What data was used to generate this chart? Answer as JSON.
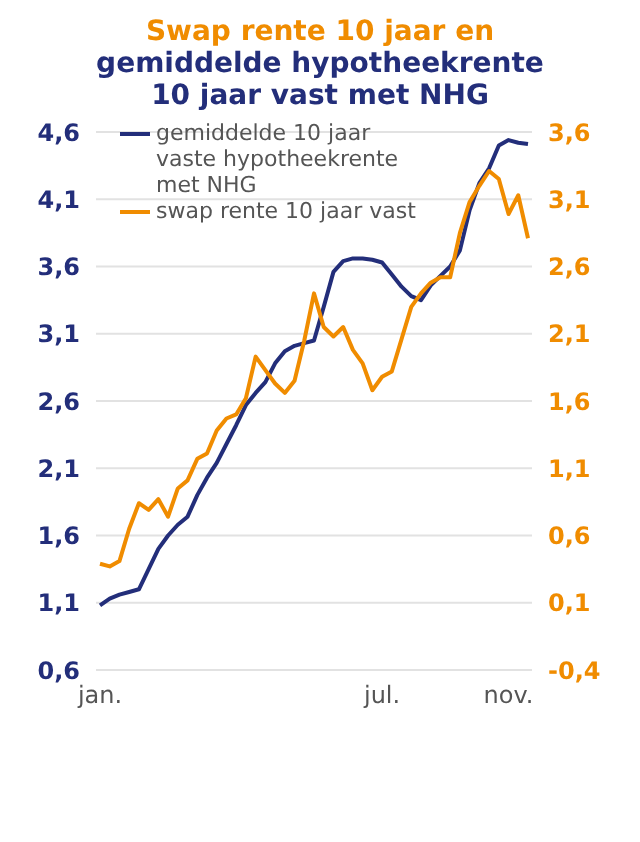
{
  "chart_data": {
    "type": "line",
    "title": "Swap rente 10 jaar en",
    "subtitle": "gemiddelde hypotheekrente 10 jaar vast met NHG",
    "categories": [
      "jan.",
      null,
      null,
      null,
      null,
      null,
      null,
      null,
      null,
      null,
      null,
      null,
      null,
      null,
      null,
      null,
      null,
      null,
      null,
      null,
      null,
      null,
      null,
      null,
      null,
      null,
      null,
      null,
      null,
      "jul.",
      null,
      null,
      null,
      null,
      null,
      null,
      null,
      null,
      null,
      null,
      null,
      null,
      "nov.",
      null,
      null
    ],
    "series": [
      {
        "name": "gemiddelde 10 jaar vaste hypotheekrente met NHG",
        "color": "#232e7a",
        "values": [
          1.08,
          1.13,
          1.16,
          1.18,
          1.2,
          1.35,
          1.5,
          1.6,
          1.68,
          1.74,
          1.9,
          2.03,
          2.14,
          2.28,
          2.42,
          2.57,
          2.66,
          2.74,
          2.88,
          2.97,
          3.01,
          3.03,
          3.05,
          3.3,
          3.56,
          3.64,
          3.66,
          3.66,
          3.65,
          3.63,
          3.54,
          3.45,
          3.38,
          3.35,
          3.46,
          3.53,
          3.6,
          3.72,
          4.02,
          4.22,
          4.33,
          4.5,
          4.54,
          4.52,
          4.51
        ]
      },
      {
        "name": "swap rente 10 jaar vast",
        "color": "#f08c00",
        "axis": "y2",
        "values": [
          0.39,
          0.37,
          0.41,
          0.65,
          0.84,
          0.79,
          0.87,
          0.74,
          0.95,
          1.01,
          1.17,
          1.21,
          1.38,
          1.47,
          1.5,
          1.62,
          1.93,
          1.83,
          1.73,
          1.66,
          1.75,
          2.05,
          2.4,
          2.15,
          2.08,
          2.15,
          1.98,
          1.88,
          1.68,
          1.78,
          1.82,
          2.06,
          2.3,
          2.4,
          2.48,
          2.52,
          2.52,
          2.85,
          3.08,
          3.2,
          3.31,
          3.25,
          2.99,
          3.13,
          2.81
        ]
      }
    ],
    "ylim": [
      0.6,
      4.6
    ],
    "yticks": [
      {
        "value": 0.6,
        "label": "0,6"
      },
      {
        "value": 1.1,
        "label": "1,1"
      },
      {
        "value": 1.6,
        "label": "1,6"
      },
      {
        "value": 2.1,
        "label": "2,1"
      },
      {
        "value": 2.6,
        "label": "2,6"
      },
      {
        "value": 3.1,
        "label": "3,1"
      },
      {
        "value": 3.6,
        "label": "3,6"
      },
      {
        "value": 4.1,
        "label": "4,1"
      },
      {
        "value": 4.6,
        "label": "4,6"
      }
    ],
    "y2lim": [
      -0.4,
      3.6
    ],
    "y2ticks": [
      {
        "value": -0.4,
        "label": "-0,4"
      },
      {
        "value": 0.1,
        "label": "0,1"
      },
      {
        "value": 0.6,
        "label": "0,6"
      },
      {
        "value": 1.1,
        "label": "1,1"
      },
      {
        "value": 1.6,
        "label": "1,6"
      },
      {
        "value": 2.1,
        "label": "2,1"
      },
      {
        "value": 2.6,
        "label": "2,6"
      },
      {
        "value": 3.1,
        "label": "3,1"
      },
      {
        "value": 3.6,
        "label": "3,6"
      }
    ],
    "grid": "y",
    "legend": "top left",
    "marker": "none",
    "line_style": "solid"
  }
}
